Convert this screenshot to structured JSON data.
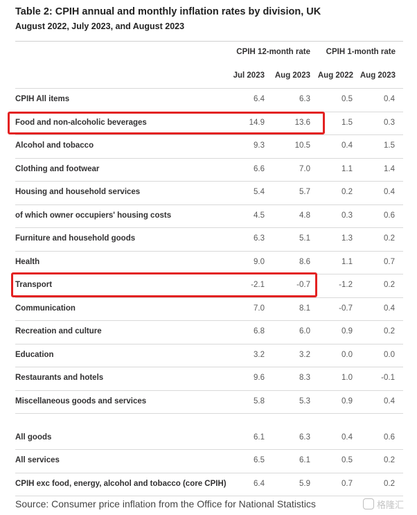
{
  "title": "Table 2: CPIH annual and monthly inflation rates by division, UK",
  "subtitle": "August 2022, July 2023, and August 2023",
  "header": {
    "group_12m": "CPIH 12-month rate",
    "group_1m": "CPIH 1-month rate",
    "columns": [
      "Jul 2023",
      "Aug 2023",
      "Aug 2022",
      "Aug 2023"
    ]
  },
  "rows": [
    {
      "label": "CPIH All items",
      "values": [
        "6.4",
        "6.3",
        "0.5",
        "0.4"
      ]
    },
    {
      "label": "Food and non-alcoholic beverages",
      "values": [
        "14.9",
        "13.6",
        "1.5",
        "0.3"
      ]
    },
    {
      "label": "Alcohol and tobacco",
      "values": [
        "9.3",
        "10.5",
        "0.4",
        "1.5"
      ]
    },
    {
      "label": "Clothing and footwear",
      "values": [
        "6.6",
        "7.0",
        "1.1",
        "1.4"
      ]
    },
    {
      "label": "Housing and household services",
      "values": [
        "5.4",
        "5.7",
        "0.2",
        "0.4"
      ]
    },
    {
      "label": "of which owner occupiers' housing costs",
      "values": [
        "4.5",
        "4.8",
        "0.3",
        "0.6"
      ]
    },
    {
      "label": "Furniture and household goods",
      "values": [
        "6.3",
        "5.1",
        "1.3",
        "0.2"
      ]
    },
    {
      "label": "Health",
      "values": [
        "9.0",
        "8.6",
        "1.1",
        "0.7"
      ]
    },
    {
      "label": "Transport",
      "values": [
        "-2.1",
        "-0.7",
        "-1.2",
        "0.2"
      ]
    },
    {
      "label": "Communication",
      "values": [
        "7.0",
        "8.1",
        "-0.7",
        "0.4"
      ]
    },
    {
      "label": "Recreation and culture",
      "values": [
        "6.8",
        "6.0",
        "0.9",
        "0.2"
      ]
    },
    {
      "label": "Education",
      "values": [
        "3.2",
        "3.2",
        "0.0",
        "0.0"
      ]
    },
    {
      "label": "Restaurants and hotels",
      "values": [
        "9.6",
        "8.3",
        "1.0",
        "-0.1"
      ]
    },
    {
      "label": "Miscellaneous goods and services",
      "values": [
        "5.8",
        "5.3",
        "0.9",
        "0.4"
      ]
    },
    {
      "label": "All goods",
      "values": [
        "6.1",
        "6.3",
        "0.4",
        "0.6"
      ]
    },
    {
      "label": "All services",
      "values": [
        "6.5",
        "6.1",
        "0.5",
        "0.2"
      ]
    },
    {
      "label": "CPIH exc food, energy, alcohol and tobacco (core CPIH)",
      "values": [
        "6.4",
        "5.9",
        "0.7",
        "0.2"
      ]
    }
  ],
  "highlight_color": "#e32121",
  "source": "Source: Consumer price inflation from the Office for National Statistics",
  "watermark": {
    "text": "格隆汇",
    "icon": "gelonghui-logo-icon"
  }
}
